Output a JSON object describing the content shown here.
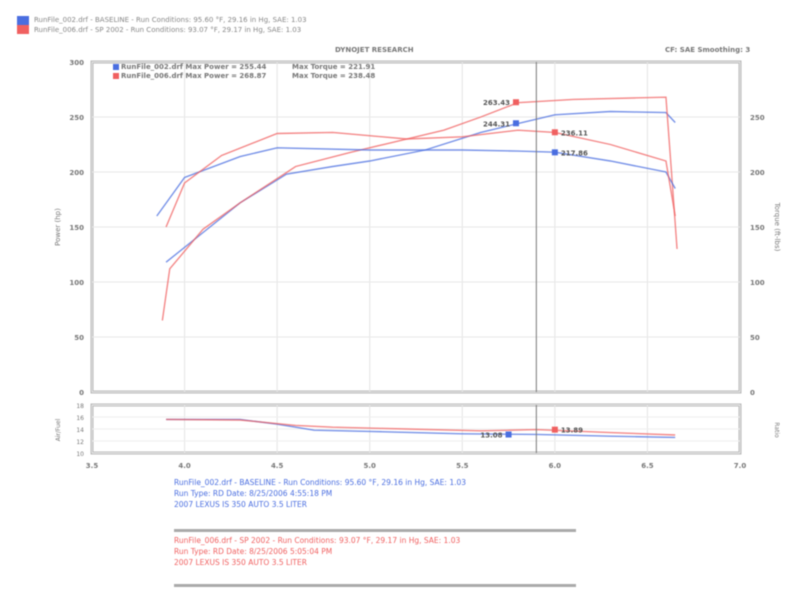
{
  "header": {
    "runs": [
      {
        "text": "RunFile_002.drf - BASELINE  -  Run Conditions: 95.60 °F, 29.16 in Hg, SAE: 1.03",
        "color": "#4a6ee0"
      },
      {
        "text": "RunFile_006.drf - SP 2002  -  Run Conditions: 93.07 °F, 29.17 in Hg, SAE: 1.03",
        "color": "#f06060"
      }
    ],
    "title": "DYNOJET RESEARCH",
    "settings": "CF: SAE  Smoothing: 3"
  },
  "legend": [
    {
      "text": "RunFile_002.drf Max Power = 255.44",
      "torque": "Max Torque = 221.91"
    },
    {
      "text": "RunFile_006.drf Max Power = 268.87",
      "torque": "Max Torque = 238.48"
    }
  ],
  "footer": {
    "baseline": [
      "RunFile_002.drf - BASELINE  -  Run Conditions: 95.60 °F, 29.16 in Hg, SAE: 1.03",
      "Run Type: RD  Date: 8/25/2006 4:55:18 PM",
      "2007 LEXUS IS 350 AUTO 3.5 LITER"
    ],
    "sp2002": [
      "RunFile_006.drf - SP 2002  -  Run Conditions: 93.07 °F, 29.17 in Hg, SAE: 1.03",
      "Run Type: RD  Date: 8/25/2006 5:05:04 PM",
      "2007 LEXUS IS 350 AUTO 3.5 LITER"
    ]
  },
  "chart_data": {
    "type": "line",
    "xlabel": "",
    "ylabel": "Power (hp)",
    "y2label": "Torque (ft-lbs)",
    "afr_label": "Air/Fuel",
    "afr_right": "Ratio",
    "xlim": [
      3.5,
      7.0
    ],
    "xticks": [
      "3.5",
      "4.0",
      "4.5",
      "5.0",
      "5.5",
      "6.0",
      "6.5",
      "7.0"
    ],
    "ylim": [
      0,
      300
    ],
    "yticks": [
      "0",
      "50",
      "100",
      "150",
      "200",
      "250",
      "300"
    ],
    "y2ticks": [
      "0",
      "50",
      "100",
      "150",
      "200",
      "250"
    ],
    "afr_lim": [
      10,
      18
    ],
    "afr_ticks": [
      "10",
      "12",
      "14",
      "16",
      "18"
    ],
    "cursor_x": 5.9,
    "colors": {
      "baseline": "#4a6ee0",
      "sp2002": "#f06060"
    },
    "series": [
      {
        "name": "RunFile_002.drf",
        "kind": "power",
        "color": "#4a6ee0",
        "x": [
          3.9,
          4.1,
          4.3,
          4.55,
          4.8,
          5.0,
          5.3,
          5.6,
          5.8,
          6.0,
          6.3,
          6.6,
          6.65
        ],
        "y": [
          118,
          145,
          172,
          198,
          205,
          210,
          220,
          236,
          244,
          252,
          255,
          254,
          245
        ]
      },
      {
        "name": "RunFile_006.drf",
        "kind": "power",
        "color": "#f06060",
        "x": [
          3.88,
          3.92,
          4.1,
          4.3,
          4.6,
          4.9,
          5.1,
          5.4,
          5.6,
          5.8,
          6.1,
          6.6,
          6.63,
          6.66
        ],
        "y": [
          65,
          112,
          148,
          172,
          205,
          218,
          226,
          238,
          250,
          263,
          266,
          268,
          200,
          130
        ]
      },
      {
        "name": "RunFile_002.drf",
        "kind": "torque",
        "color": "#4a6ee0",
        "x": [
          3.85,
          4.0,
          4.3,
          4.5,
          5.0,
          5.5,
          5.8,
          6.0,
          6.3,
          6.6,
          6.65
        ],
        "y": [
          160,
          195,
          214,
          222,
          220,
          220,
          219,
          218,
          210,
          200,
          185
        ]
      },
      {
        "name": "RunFile_006.drf",
        "kind": "torque",
        "color": "#f06060",
        "x": [
          3.9,
          4.0,
          4.2,
          4.5,
          4.8,
          5.2,
          5.5,
          5.8,
          6.0,
          6.3,
          6.6,
          6.65
        ],
        "y": [
          150,
          190,
          215,
          235,
          236,
          230,
          232,
          238,
          236,
          225,
          210,
          160
        ]
      },
      {
        "name": "RunFile_002.drf",
        "kind": "afr",
        "color": "#4a6ee0",
        "x": [
          3.9,
          4.3,
          4.5,
          4.7,
          5.0,
          5.5,
          5.9,
          6.3,
          6.65
        ],
        "y": [
          15.6,
          15.6,
          14.8,
          13.8,
          13.6,
          13.2,
          13.1,
          12.8,
          12.6
        ]
      },
      {
        "name": "RunFile_006.drf",
        "kind": "afr",
        "color": "#f06060",
        "x": [
          3.9,
          4.3,
          4.6,
          4.8,
          5.2,
          5.6,
          5.9,
          6.3,
          6.65
        ],
        "y": [
          15.6,
          15.5,
          14.6,
          14.3,
          14.0,
          13.7,
          13.9,
          13.4,
          13.0
        ]
      }
    ],
    "markers": [
      {
        "label": "263.43",
        "x": 5.79,
        "y": 263.43,
        "color": "#f06060",
        "side": "left",
        "kind": "power"
      },
      {
        "label": "244.31",
        "x": 5.79,
        "y": 244.31,
        "color": "#4a6ee0",
        "side": "left",
        "kind": "power"
      },
      {
        "label": "236.11",
        "x": 6.0,
        "y": 236.11,
        "color": "#f06060",
        "side": "right",
        "kind": "power"
      },
      {
        "label": "217.86",
        "x": 6.0,
        "y": 217.86,
        "color": "#4a6ee0",
        "side": "right",
        "kind": "power"
      },
      {
        "label": "13.08",
        "x": 5.75,
        "y": 13.08,
        "color": "#4a6ee0",
        "side": "left",
        "kind": "afr"
      },
      {
        "label": "13.89",
        "x": 6.0,
        "y": 13.89,
        "color": "#f06060",
        "side": "right",
        "kind": "afr"
      }
    ]
  }
}
